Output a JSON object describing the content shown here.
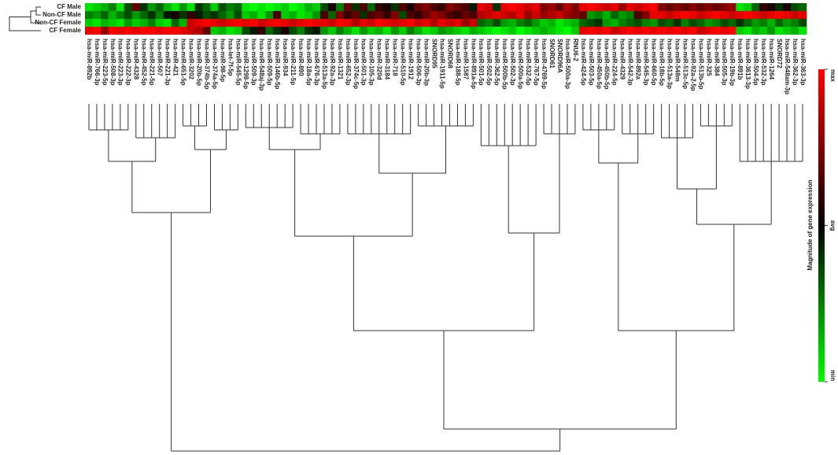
{
  "chart_data": {
    "type": "heatmap",
    "rows": [
      "CF Male",
      "Non-CF Male",
      "Non-CF Female",
      "CF Female"
    ],
    "categories": [
      "hsa-miR-892b",
      "hsa-miR-766-3p",
      "hsa-miR-223-5p",
      "hsa-miR-508-3p",
      "hsa-miR-223-3p",
      "hsa-miR-222-3p",
      "hsa-miR-4328",
      "hsa-miR-452-5p",
      "hsa-miR-221-5p",
      "hsa-miR-507",
      "hsa-miR-221-3p",
      "hsa-miR-421",
      "hsa-miR-651-5p",
      "hsa-miR-3202",
      "hsa-miR-20b-5p",
      "hsa-miR-374b-5p",
      "hsa-miR-374a-5p",
      "hsa-miR-98-5p",
      "hsa-let-7f-5p",
      "hsa-miR-545-5p",
      "hsa-miR-1298-5p",
      "hsa-miR-509-3p",
      "hsa-miR-548aj-3p",
      "hsa-miR-509-5p",
      "hsa-miR-146b-5p",
      "hsa-miR-934",
      "hsa-miR-211-5p",
      "hsa-miR-890",
      "hsa-miR-18a-5p",
      "hsa-miR-676-3p",
      "hsa-miR-513a-5p",
      "hsa-miR-92a-3p",
      "hsa-miR-1321",
      "hsa-miR-652-3p",
      "hsa-miR-374c-5p",
      "hsa-miR-501-3p",
      "hsa-miR-105-3p",
      "hsa-miR-320d",
      "hsa-miR-3184",
      "hsa-miR-718",
      "hsa-miR-510-5p",
      "hsa-miR-1912",
      "hsa-miR-506-3p",
      "hsa-miR-20b-3p",
      "SNORD95",
      "hsa-miR-1911-5p",
      "SNORD68",
      "hsa-miR-188-5p",
      "hsa-miR-1587",
      "hsa-miR-891a-5p",
      "hsa-miR-501-5p",
      "hsa-miR-502-5p",
      "hsa-miR-362-5p",
      "hsa-miR-500b-5p",
      "hsa-miR-502-3p",
      "hsa-miR-500a-5p",
      "hsa-miR-532-5p",
      "hsa-miR-767-5p",
      "hsa-miR-4769-5p",
      "SNORD61",
      "SNORD96A",
      "hsa-miR-500a-3p",
      "RNU6-2",
      "hsa-miR-424-5p",
      "hsa-miR-503-5p",
      "hsa-miR-450a-5p",
      "hsa-miR-450b-5p",
      "hsa-miR-224-5p",
      "hsa-miR-4329",
      "hsa-miR-542-3p",
      "hsa-miR-892a",
      "hsa-miR-545-3p",
      "hsa-miR-660-5p",
      "hsa-miR-18b-5p",
      "hsa-miR-513a-3p",
      "hsa-miR-548m",
      "hsa-miR-513c-5p",
      "hsa-miR-92a-2-5p",
      "hsa-miR-513b-5p",
      "hsa-miR-325",
      "hsa-miR-384",
      "hsa-miR-505-3p",
      "hsa-miR-19b-3p",
      "hsa-miR-891b",
      "hsa-miR-3613-3p",
      "hsa-miR-504-5p",
      "hsa-miR-532-3p",
      "hsa-miR-1264",
      "SNORD72",
      "hsa-miR-548am-3p",
      "hsa-miR-362-3p",
      "hsa-miR-363-3p"
    ],
    "values": [
      [
        -0.9,
        -0.8,
        -0.7,
        -0.5,
        -0.9,
        -0.3,
        0.4,
        -0.2,
        -0.6,
        -0.4,
        -0.7,
        -0.9,
        -0.6,
        -0.9,
        -0.2,
        -0.4,
        -0.8,
        -0.3,
        -0.5,
        -0.4,
        -0.9,
        -1,
        -0.9,
        -1,
        -0.9,
        -0.8,
        -1,
        -0.9,
        -0.7,
        -0.8,
        -0.3,
        0.1,
        -0.5,
        0.4,
        -0.2,
        0.3,
        -0.4,
        0.2,
        0.1,
        -0.2,
        0.3,
        0.1,
        0.4,
        0.5,
        0.3,
        0.2,
        0.5,
        0.4,
        0.3,
        -0.1,
        0.9,
        0.8,
        -0.2,
        0.9,
        1,
        0.9,
        0.8,
        0.9,
        0.5,
        0.6,
        0.4,
        0.7,
        0.5,
        0.9,
        1,
        0.9,
        0.8,
        0.9,
        0.6,
        0.9,
        0.8,
        0.9,
        1,
        0.5,
        0.4,
        0.5,
        0.4,
        0.5,
        0.4,
        0.5,
        0.4,
        0.5,
        0.6,
        -0.9,
        -0.8,
        -0.4,
        0.2,
        0.1,
        -0.2,
        0.1,
        -0.3,
        -0.4
      ],
      [
        -0.5,
        -0.6,
        -0.4,
        -0.7,
        -0.5,
        -0.3,
        -0.6,
        -0.4,
        -0.2,
        -0.5,
        -0.1,
        0.1,
        -0.2,
        0.2,
        -0.1,
        -0.3,
        -0.2,
        -0.4,
        -0.6,
        -0.3,
        -0.8,
        -0.7,
        -0.9,
        -0.6,
        0.3,
        -0.8,
        -0.7,
        -0.9,
        -0.8,
        -0.6,
        0.3,
        -0.4,
        0.5,
        0.2,
        0.4,
        -0.2,
        0.3,
        0.4,
        0.2,
        0.5,
        -0.3,
        0.3,
        0.2,
        0.4,
        0.6,
        0.5,
        0.3,
        0.2,
        0.4,
        0.3,
        0.7,
        0.8,
        0.9,
        0.8,
        0.7,
        0.9,
        0.6,
        0.8,
        0.6,
        0.7,
        0.8,
        0.6,
        0.5,
        0.4,
        -0.6,
        -0.5,
        -0.7,
        -0.4,
        -0.6,
        -0.5,
        0.3,
        0.5,
        0.9,
        0.9,
        0.8,
        0.9,
        1,
        0.9,
        0.8,
        0.9,
        1,
        0.9,
        0.8,
        0.9,
        1,
        0.9,
        0.8,
        0.9,
        1,
        0.9,
        0.8,
        0.9
      ],
      [
        -0.8,
        -0.9,
        -0.7,
        -0.8,
        -0.9,
        -0.6,
        -0.8,
        -0.7,
        -0.5,
        -0.8,
        -0.9,
        -0.4,
        -0.7,
        0.8,
        0.9,
        1,
        0.9,
        0.8,
        0.9,
        1,
        0.9,
        1,
        0.8,
        0.9,
        1,
        0.9,
        0.8,
        0.9,
        1,
        0.9,
        0.9,
        0.8,
        1,
        0.9,
        0.7,
        0.9,
        0.8,
        1,
        0.9,
        0.8,
        0.9,
        1,
        0.8,
        0.9,
        0.7,
        0.9,
        0.8,
        0.9,
        0.6,
        0.8,
        -0.4,
        -0.5,
        -0.3,
        -0.6,
        -0.7,
        -0.5,
        -0.4,
        -0.6,
        -0.8,
        -0.7,
        -0.9,
        -0.8,
        -0.7,
        -0.4,
        -0.3,
        -0.2,
        -0.6,
        -0.7,
        -0.5,
        -0.4,
        -0.3,
        -0.5,
        -0.6,
        -0.3,
        -0.4,
        -0.2,
        -0.5,
        -0.3,
        -0.4,
        -0.6,
        -0.5,
        -0.3,
        -0.4,
        -0.2,
        -0.4,
        -0.6,
        -0.5,
        -0.7,
        -0.4,
        -0.6,
        -0.5,
        -0.3
      ],
      [
        0.9,
        1,
        0.6,
        1,
        0.9,
        1,
        0.9,
        1,
        1,
        0.9,
        1,
        1,
        0.9,
        0.8,
        0.7,
        0.4,
        -0.8,
        -0.7,
        -0.9,
        -0.8,
        -0.3,
        -0.1,
        0.2,
        -0.4,
        -0.2,
        0.1,
        -0.3,
        -0.5,
        -0.2,
        -0.1,
        -0.6,
        -0.8,
        -0.5,
        -0.7,
        -0.9,
        -0.6,
        -0.8,
        -0.7,
        -0.9,
        -0.6,
        -0.8,
        -0.5,
        -0.7,
        -0.9,
        -0.8,
        -0.6,
        -0.7,
        -0.8,
        -0.9,
        -0.7,
        -0.8,
        -0.9,
        -1,
        -0.9,
        -0.8,
        -1,
        -0.9,
        -0.8,
        -0.7,
        -0.8,
        -0.9,
        -1,
        -0.8,
        0.9,
        1,
        0.9,
        1,
        0.8,
        0.9,
        1,
        0.9,
        1,
        0.9,
        1,
        0.9,
        1,
        0.9,
        1,
        0.8,
        0.9,
        1,
        0.9,
        1,
        -0.8,
        -0.9,
        -0.7,
        -0.8,
        -0.6,
        -0.9,
        -0.8,
        -0.7,
        -0.9
      ]
    ],
    "zlim": [
      -1,
      1
    ],
    "zticks": [
      {
        "value": 1,
        "label": "max"
      },
      {
        "value": 0,
        "label": "avg"
      },
      {
        "value": -1,
        "label": "min"
      }
    ],
    "colorbar_label": "Magnitude of gene expression",
    "colors": {
      "max": "#ff0000",
      "avg": "#000000",
      "min": "#00ff00"
    }
  }
}
